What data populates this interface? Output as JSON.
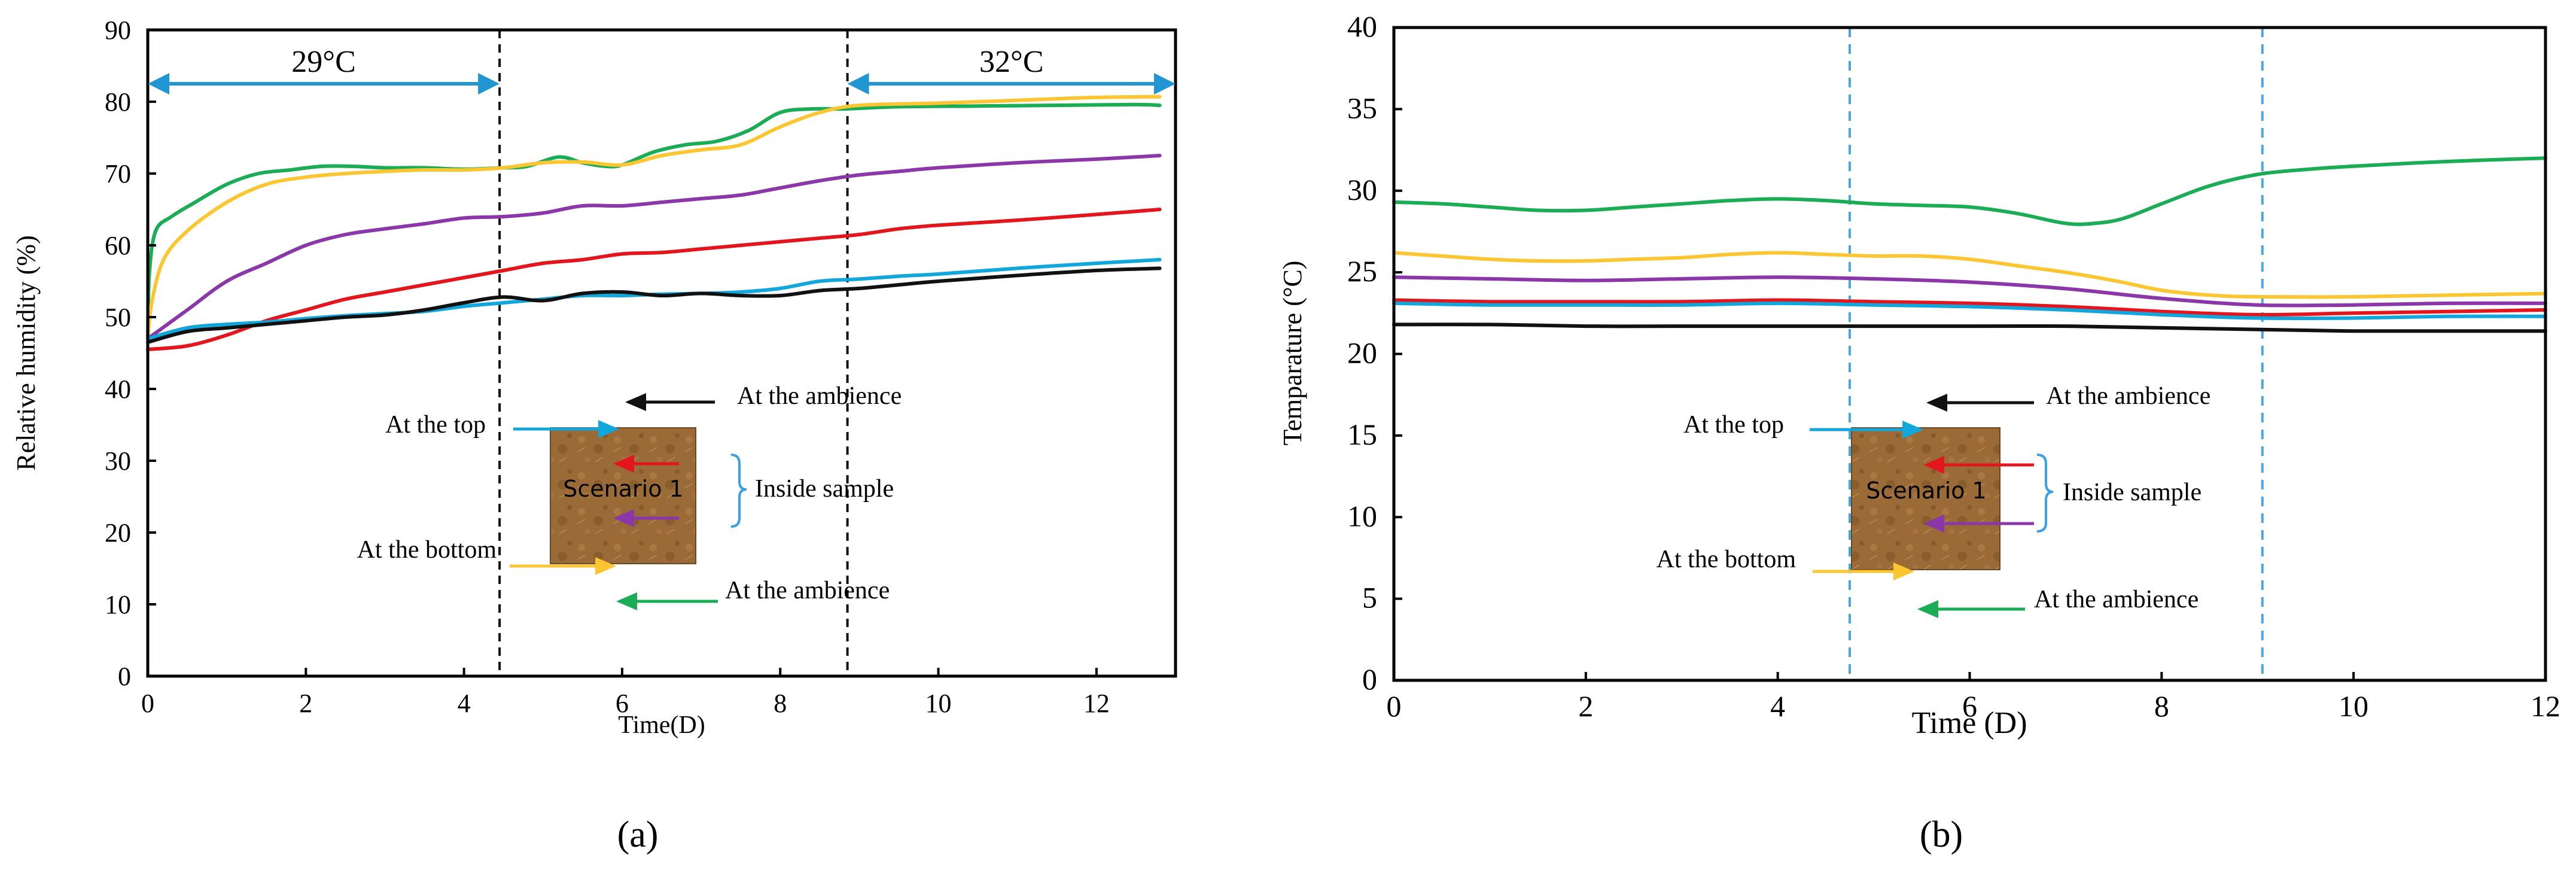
{
  "colors": {
    "green": "#1aad55",
    "yellow": "#fbc631",
    "purple": "#8b37a9",
    "red": "#e3161e",
    "cyan": "#12a7dc",
    "black": "#111111",
    "arrow_blue": "#2196d3",
    "divider_blue": "#4aa6df",
    "bracket_blue": "#3aa0e0",
    "sample_fill": "#9b6b37",
    "sample_dark": "#6f4622"
  },
  "chart_data": [
    {
      "type": "line",
      "panel_label": "(a)",
      "title": "",
      "xlabel": "Time(D)",
      "ylabel": "Relative humidity (%)",
      "xlim": [
        0,
        13
      ],
      "ylim": [
        0,
        90
      ],
      "xticks": [
        0,
        2,
        4,
        6,
        8,
        10,
        12
      ],
      "yticks": [
        0,
        10,
        20,
        30,
        40,
        50,
        60,
        70,
        80,
        90
      ],
      "dividers_x": [
        4.45,
        8.85
      ],
      "divider_style": "black-dashed",
      "periods": [
        {
          "label": "29°C",
          "x_start": 0,
          "x_end": 4.45
        },
        {
          "label": "32°C",
          "x_start": 8.85,
          "x_end": 13
        }
      ],
      "series": [
        {
          "name": "At the ambience (green)",
          "color": "green",
          "x": [
            0,
            0.02,
            0.1,
            0.3,
            0.6,
            1.0,
            1.4,
            1.8,
            2.2,
            2.6,
            3.0,
            3.5,
            4.0,
            4.5,
            4.8,
            5.2,
            5.5,
            5.8,
            6.0,
            6.4,
            6.8,
            7.2,
            7.6,
            8.0,
            8.4,
            8.8,
            9.5,
            10.5,
            11.5,
            12.5,
            12.8
          ],
          "y": [
            47,
            56,
            62,
            64,
            66,
            68.5,
            70,
            70.5,
            71,
            71,
            70.8,
            70.8,
            70.6,
            70.8,
            71,
            72.3,
            71.5,
            71,
            71.2,
            73,
            74,
            74.5,
            76,
            78.5,
            79,
            79,
            79.3,
            79.4,
            79.5,
            79.6,
            79.5
          ]
        },
        {
          "name": "At the bottom (yellow)",
          "color": "yellow",
          "x": [
            0,
            0.05,
            0.2,
            0.5,
            1.0,
            1.5,
            2.0,
            2.5,
            3.0,
            3.5,
            4.0,
            4.5,
            5.0,
            5.5,
            6.0,
            6.5,
            7.0,
            7.5,
            8.0,
            8.5,
            9.0,
            10.0,
            11.0,
            12.0,
            12.8
          ],
          "y": [
            47,
            52,
            58,
            62,
            66,
            68.5,
            69.5,
            70,
            70.3,
            70.5,
            70.5,
            70.8,
            71.5,
            71.6,
            71.2,
            72.5,
            73.3,
            74,
            76.5,
            78.5,
            79.5,
            79.8,
            80.2,
            80.6,
            80.7
          ]
        },
        {
          "name": "Inside sample (purple)",
          "color": "purple",
          "x": [
            0,
            0.5,
            1.0,
            1.5,
            2.0,
            2.5,
            3.0,
            3.5,
            4.0,
            4.5,
            5.0,
            5.5,
            6.0,
            6.5,
            7.0,
            7.5,
            8.0,
            8.5,
            9.0,
            9.5,
            10.0,
            11.0,
            12.0,
            12.8
          ],
          "y": [
            47,
            51,
            55,
            57.5,
            60,
            61.5,
            62.3,
            63,
            63.8,
            64,
            64.5,
            65.5,
            65.5,
            66,
            66.5,
            67,
            68,
            69,
            69.8,
            70.3,
            70.8,
            71.5,
            72,
            72.5
          ]
        },
        {
          "name": "Inside sample (red)",
          "color": "red",
          "x": [
            0,
            0.5,
            1.0,
            1.5,
            2.0,
            2.5,
            3.0,
            3.5,
            4.0,
            4.5,
            5.0,
            5.5,
            6.0,
            6.5,
            7.0,
            7.5,
            8.0,
            8.5,
            9.0,
            9.5,
            10.0,
            11.0,
            12.0,
            12.8
          ],
          "y": [
            45.5,
            46,
            47.5,
            49.5,
            51,
            52.5,
            53.5,
            54.5,
            55.5,
            56.5,
            57.5,
            58,
            58.8,
            59,
            59.5,
            60,
            60.5,
            61,
            61.5,
            62.3,
            62.8,
            63.5,
            64.3,
            65
          ]
        },
        {
          "name": "At the top (cyan)",
          "color": "cyan",
          "x": [
            0,
            0.5,
            1.0,
            1.5,
            2.0,
            2.5,
            3.0,
            3.5,
            4.0,
            4.5,
            5.0,
            5.5,
            6.0,
            6.5,
            7.0,
            7.5,
            8.0,
            8.5,
            9.0,
            9.5,
            10.0,
            11.0,
            12.0,
            12.8
          ],
          "y": [
            47,
            48.5,
            49,
            49.3,
            49.8,
            50.2,
            50.5,
            50.8,
            51.5,
            52,
            52.5,
            53,
            53,
            53.2,
            53.3,
            53.5,
            54,
            55,
            55.3,
            55.7,
            56,
            56.8,
            57.5,
            58
          ]
        },
        {
          "name": "At the ambience (black)",
          "color": "black",
          "x": [
            0,
            0.5,
            1.0,
            1.5,
            2.0,
            2.5,
            3.0,
            3.5,
            4.0,
            4.5,
            5.0,
            5.5,
            6.0,
            6.5,
            7.0,
            7.5,
            8.0,
            8.5,
            9.0,
            9.5,
            10.0,
            11.0,
            12.0,
            12.8
          ],
          "y": [
            46.5,
            48,
            48.5,
            49,
            49.5,
            50,
            50.3,
            51,
            52,
            52.8,
            52.3,
            53.3,
            53.5,
            53,
            53.3,
            53,
            53,
            53.7,
            54,
            54.5,
            55,
            55.8,
            56.5,
            56.8
          ]
        }
      ],
      "annotations": {
        "top": "At the top",
        "bottom": "At the bottom",
        "ambience_top": "At the ambience",
        "ambience_bottom": "At the ambience",
        "inside": "Inside sample",
        "scenario": "Scenario 1"
      }
    },
    {
      "type": "line",
      "panel_label": "(b)",
      "title": "",
      "xlabel": "Time (D)",
      "ylabel": "Temparature (°C)",
      "xlim": [
        0,
        12
      ],
      "ylim": [
        0,
        40
      ],
      "xticks": [
        0,
        2,
        4,
        6,
        8,
        10,
        12
      ],
      "yticks": [
        0,
        5,
        10,
        15,
        20,
        25,
        30,
        35,
        40
      ],
      "dividers_x": [
        4.75,
        9.05
      ],
      "divider_style": "blue-dashed",
      "periods": [],
      "series": [
        {
          "name": "At the ambience (green)",
          "color": "green",
          "x": [
            0,
            0.5,
            1.0,
            1.5,
            2.0,
            2.5,
            3.0,
            3.5,
            4.0,
            4.5,
            5.0,
            5.5,
            6.0,
            6.5,
            7.0,
            7.3,
            7.6,
            8.0,
            8.5,
            9.0,
            9.5,
            10.0,
            11.0,
            12.0
          ],
          "y": [
            29.3,
            29.2,
            29.0,
            28.8,
            28.8,
            29.0,
            29.2,
            29.4,
            29.5,
            29.4,
            29.2,
            29.1,
            29.0,
            28.6,
            28.0,
            28.0,
            28.3,
            29.2,
            30.3,
            31.0,
            31.3,
            31.5,
            31.8,
            32.0
          ]
        },
        {
          "name": "At the bottom (yellow)",
          "color": "yellow",
          "x": [
            0,
            0.5,
            1.0,
            1.5,
            2.0,
            2.5,
            3.0,
            3.5,
            4.0,
            4.5,
            5.0,
            5.5,
            6.0,
            6.5,
            7.0,
            7.5,
            8.0,
            8.5,
            9.0,
            10.0,
            11.0,
            12.0
          ],
          "y": [
            26.2,
            26.0,
            25.8,
            25.7,
            25.7,
            25.8,
            25.9,
            26.1,
            26.2,
            26.1,
            26.0,
            26.0,
            25.8,
            25.4,
            25.0,
            24.5,
            23.9,
            23.6,
            23.5,
            23.5,
            23.6,
            23.7
          ]
        },
        {
          "name": "Inside sample (purple)",
          "color": "purple",
          "x": [
            0,
            1.0,
            2.0,
            3.0,
            4.0,
            5.0,
            6.0,
            7.0,
            8.0,
            9.0,
            10.0,
            11.0,
            12.0
          ],
          "y": [
            24.7,
            24.6,
            24.5,
            24.6,
            24.7,
            24.6,
            24.4,
            24.0,
            23.4,
            23.0,
            23.0,
            23.1,
            23.1
          ]
        },
        {
          "name": "Inside sample (red)",
          "color": "red",
          "x": [
            0,
            1.0,
            2.0,
            3.0,
            4.0,
            5.0,
            6.0,
            7.0,
            8.0,
            9.0,
            10.0,
            11.0,
            12.0
          ],
          "y": [
            23.3,
            23.2,
            23.2,
            23.2,
            23.3,
            23.2,
            23.1,
            22.9,
            22.6,
            22.4,
            22.5,
            22.6,
            22.7
          ]
        },
        {
          "name": "At the top (cyan)",
          "color": "cyan",
          "x": [
            0,
            1.0,
            2.0,
            3.0,
            4.0,
            5.0,
            6.0,
            7.0,
            8.0,
            9.0,
            10.0,
            11.0,
            12.0
          ],
          "y": [
            23.1,
            23.0,
            23.0,
            23.0,
            23.1,
            23.0,
            22.9,
            22.7,
            22.4,
            22.2,
            22.2,
            22.3,
            22.3
          ]
        },
        {
          "name": "At the ambience (black)",
          "color": "black",
          "x": [
            0,
            1.0,
            2.0,
            3.0,
            4.0,
            5.0,
            6.0,
            7.0,
            8.0,
            9.0,
            10.0,
            11.0,
            12.0
          ],
          "y": [
            21.8,
            21.8,
            21.7,
            21.7,
            21.7,
            21.7,
            21.7,
            21.7,
            21.6,
            21.5,
            21.4,
            21.4,
            21.4
          ]
        }
      ],
      "annotations": {
        "top": "At the top",
        "bottom": "At the bottom",
        "ambience_top": "At the ambience",
        "ambience_bottom": "At the ambience",
        "inside": "Inside sample",
        "scenario": "Scenario 1"
      }
    }
  ]
}
